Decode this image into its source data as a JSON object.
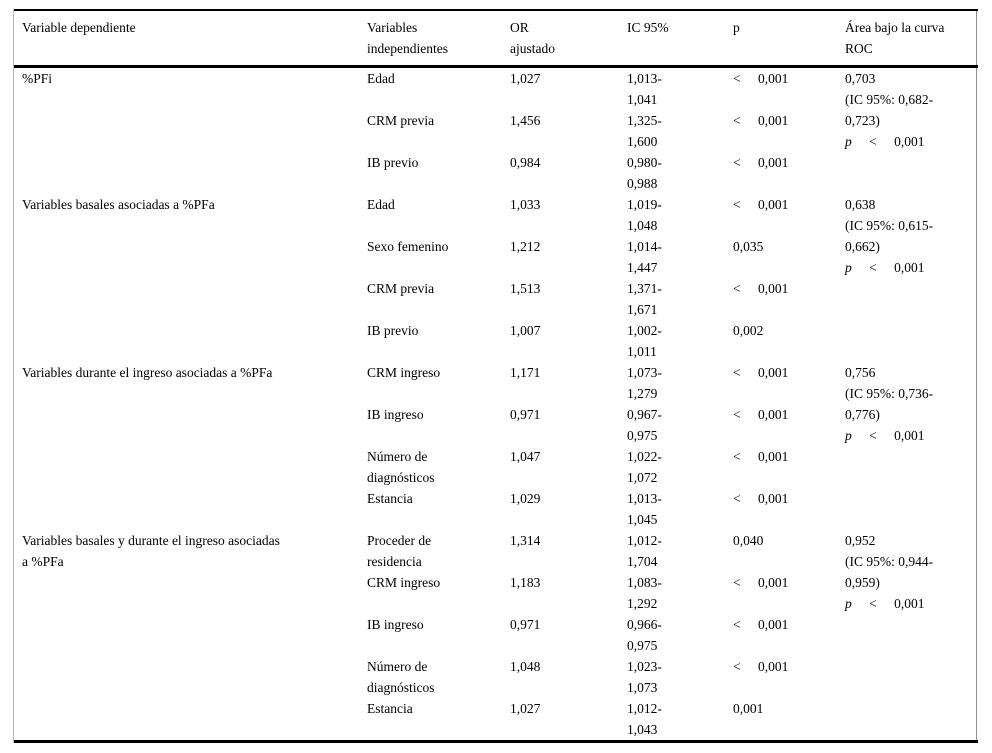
{
  "table": {
    "headers": {
      "dependent": {
        "l1": "Variable dependiente"
      },
      "independent": {
        "l1": "Variables",
        "l2": "independientes"
      },
      "or": {
        "l1": "OR",
        "l2": "ajustado"
      },
      "ic": {
        "l1": "IC 95%"
      },
      "p": {
        "l1": "p"
      },
      "roc": {
        "l1": "Área bajo la curva",
        "l2": "ROC"
      }
    },
    "sections": [
      {
        "dependent_lines": [
          "%PFi"
        ],
        "rows": [
          {
            "var": "Edad",
            "or": "1,027",
            "ic1": "1,013-",
            "ic2": "1,041",
            "p": "< 0,001"
          },
          {
            "var": "CRM previa",
            "or": "1,456",
            "ic1": "1,325-",
            "ic2": "1,600",
            "p": "< 0,001"
          },
          {
            "var": "IB previo",
            "or": "0,984",
            "ic1": "0,980-",
            "ic2": "0,988",
            "p": "< 0,001"
          }
        ],
        "roc": {
          "auc": "0,703",
          "ci1": "(IC 95%: 0,682-",
          "ci2": "0,723)",
          "p_label": "p",
          "p": "< 0,001"
        }
      },
      {
        "dependent_lines": [
          "Variables basales asociadas a %PFa"
        ],
        "rows": [
          {
            "var": "Edad",
            "or": "1,033",
            "ic1": "1,019-",
            "ic2": "1,048",
            "p": "< 0,001"
          },
          {
            "var": "Sexo femenino",
            "or": "1,212",
            "ic1": "1,014-",
            "ic2": "1,447",
            "p": "0,035"
          },
          {
            "var": "CRM previa",
            "or": "1,513",
            "ic1": "1,371-",
            "ic2": "1,671",
            "p": "< 0,001"
          },
          {
            "var": "IB previo",
            "or": "1,007",
            "ic1": "1,002-",
            "ic2": "1,011",
            "p": "0,002"
          }
        ],
        "roc": {
          "auc": "0,638",
          "ci1": "(IC 95%: 0,615-",
          "ci2": "0,662)",
          "p_label": "p",
          "p": "< 0,001"
        }
      },
      {
        "dependent_lines": [
          "Variables durante el ingreso asociadas a %PFa"
        ],
        "rows": [
          {
            "var": "CRM ingreso",
            "or": "1,171",
            "ic1": "1,073-",
            "ic2": "1,279",
            "p": "< 0,001"
          },
          {
            "var": "IB ingreso",
            "or": "0,971",
            "ic1": "0,967-",
            "ic2": "0,975",
            "p": "< 0,001"
          },
          {
            "var": "Número de diagnósticos",
            "or": "1,047",
            "ic1": "1,022-",
            "ic2": "1,072",
            "p": "< 0,001"
          },
          {
            "var": "Estancia",
            "or": "1,029",
            "ic1": "1,013-",
            "ic2": "1,045",
            "p": "< 0,001"
          }
        ],
        "roc": {
          "auc": "0,756",
          "ci1": "(IC 95%: 0,736-",
          "ci2": "0,776)",
          "p_label": "p",
          "p": "< 0,001"
        }
      },
      {
        "dependent_lines": [
          "Variables basales y durante el ingreso asociadas",
          "a %PFa"
        ],
        "rows": [
          {
            "var": "Proceder de residencia",
            "or": "1,314",
            "ic1": "1,012-",
            "ic2": "1,704",
            "p": "0,040"
          },
          {
            "var": "CRM ingreso",
            "or": "1,183",
            "ic1": "1,083-",
            "ic2": "1,292",
            "p": "< 0,001"
          },
          {
            "var": "IB ingreso",
            "or": "0,971",
            "ic1": "0,966-",
            "ic2": "0,975",
            "p": "< 0,001"
          },
          {
            "var": "Número de diagnósticos",
            "or": "1,048",
            "ic1": "1,023-",
            "ic2": "1,073",
            "p": "< 0,001"
          },
          {
            "var": "Estancia",
            "or": "1,027",
            "ic1": "1,012-",
            "ic2": "1,043",
            "p": "0,001"
          }
        ],
        "roc": {
          "auc": "0,952",
          "ci1": "(IC 95%: 0,944-",
          "ci2": "0,959)",
          "p_label": "p",
          "p": "< 0,001"
        }
      }
    ]
  }
}
